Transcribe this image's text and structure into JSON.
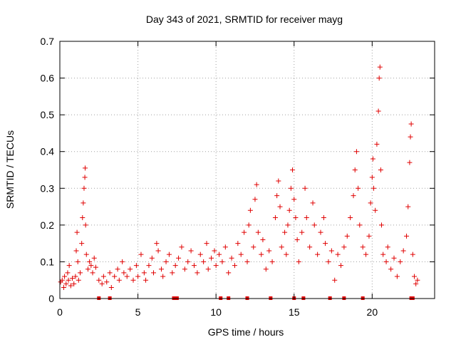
{
  "chart_data": {
    "type": "scatter",
    "title": "Day 343 of 2021, SRMTID for receiver mayg",
    "xlabel": "GPS time / hours",
    "ylabel": "SRMTID / TECUs",
    "xlim": [
      0,
      24
    ],
    "ylim": [
      0,
      0.7
    ],
    "xticks": [
      0,
      5,
      10,
      15,
      20
    ],
    "xtick_labels": [
      "0",
      "5",
      "10",
      "15",
      "20"
    ],
    "yticks": [
      0,
      0.1,
      0.2,
      0.3,
      0.4,
      0.5,
      0.6,
      0.7
    ],
    "ytick_labels": [
      "0",
      "0.1",
      "0.2",
      "0.3",
      "0.4",
      "0.5",
      "0.6",
      "0.7"
    ],
    "grid": true,
    "marker": "plus",
    "color": "#e00000",
    "series": [
      {
        "name": "SRMTID",
        "points": [
          [
            0.05,
            0.045
          ],
          [
            0.15,
            0.05
          ],
          [
            0.25,
            0.03
          ],
          [
            0.3,
            0.06
          ],
          [
            0.4,
            0.04
          ],
          [
            0.5,
            0.07
          ],
          [
            0.55,
            0.05
          ],
          [
            0.6,
            0.09
          ],
          [
            0.7,
            0.035
          ],
          [
            0.8,
            0.055
          ],
          [
            0.9,
            0.04
          ],
          [
            1.0,
            0.06
          ],
          [
            1.05,
            0.13
          ],
          [
            1.1,
            0.18
          ],
          [
            1.15,
            0.1
          ],
          [
            1.2,
            0.05
          ],
          [
            1.3,
            0.07
          ],
          [
            1.4,
            0.15
          ],
          [
            1.45,
            0.22
          ],
          [
            1.5,
            0.26
          ],
          [
            1.55,
            0.3
          ],
          [
            1.6,
            0.33
          ],
          [
            1.62,
            0.355
          ],
          [
            1.65,
            0.2
          ],
          [
            1.7,
            0.12
          ],
          [
            1.8,
            0.08
          ],
          [
            1.9,
            0.1
          ],
          [
            2.0,
            0.09
          ],
          [
            2.1,
            0.07
          ],
          [
            2.2,
            0.11
          ],
          [
            2.3,
            0.085
          ],
          [
            2.5,
            0.05
          ],
          [
            2.7,
            0.04
          ],
          [
            2.8,
            0.06
          ],
          [
            3.0,
            0.045
          ],
          [
            3.2,
            0.07
          ],
          [
            3.3,
            0.03
          ],
          [
            3.5,
            0.06
          ],
          [
            3.7,
            0.08
          ],
          [
            3.8,
            0.05
          ],
          [
            4.0,
            0.1
          ],
          [
            4.1,
            0.07
          ],
          [
            4.3,
            0.06
          ],
          [
            4.5,
            0.08
          ],
          [
            4.7,
            0.05
          ],
          [
            4.9,
            0.09
          ],
          [
            5.0,
            0.06
          ],
          [
            5.2,
            0.12
          ],
          [
            5.4,
            0.07
          ],
          [
            5.5,
            0.05
          ],
          [
            5.7,
            0.09
          ],
          [
            5.9,
            0.11
          ],
          [
            6.0,
            0.07
          ],
          [
            6.2,
            0.15
          ],
          [
            6.3,
            0.13
          ],
          [
            6.5,
            0.08
          ],
          [
            6.6,
            0.06
          ],
          [
            6.8,
            0.1
          ],
          [
            7.0,
            0.12
          ],
          [
            7.2,
            0.07
          ],
          [
            7.4,
            0.09
          ],
          [
            7.6,
            0.11
          ],
          [
            7.8,
            0.14
          ],
          [
            8.0,
            0.08
          ],
          [
            8.2,
            0.1
          ],
          [
            8.4,
            0.13
          ],
          [
            8.6,
            0.09
          ],
          [
            8.8,
            0.07
          ],
          [
            9.0,
            0.12
          ],
          [
            9.2,
            0.1
          ],
          [
            9.4,
            0.15
          ],
          [
            9.5,
            0.08
          ],
          [
            9.7,
            0.11
          ],
          [
            9.9,
            0.13
          ],
          [
            10.0,
            0.09
          ],
          [
            10.2,
            0.12
          ],
          [
            10.4,
            0.1
          ],
          [
            10.6,
            0.14
          ],
          [
            10.8,
            0.07
          ],
          [
            11.0,
            0.11
          ],
          [
            11.2,
            0.09
          ],
          [
            11.4,
            0.15
          ],
          [
            11.6,
            0.12
          ],
          [
            11.8,
            0.18
          ],
          [
            12.0,
            0.1
          ],
          [
            12.1,
            0.2
          ],
          [
            12.2,
            0.24
          ],
          [
            12.4,
            0.14
          ],
          [
            12.5,
            0.27
          ],
          [
            12.6,
            0.31
          ],
          [
            12.7,
            0.18
          ],
          [
            12.9,
            0.12
          ],
          [
            13.0,
            0.16
          ],
          [
            13.2,
            0.08
          ],
          [
            13.4,
            0.13
          ],
          [
            13.6,
            0.1
          ],
          [
            13.8,
            0.22
          ],
          [
            13.9,
            0.28
          ],
          [
            14.0,
            0.32
          ],
          [
            14.1,
            0.25
          ],
          [
            14.2,
            0.14
          ],
          [
            14.4,
            0.18
          ],
          [
            14.5,
            0.12
          ],
          [
            14.6,
            0.2
          ],
          [
            14.7,
            0.24
          ],
          [
            14.8,
            0.3
          ],
          [
            14.9,
            0.35
          ],
          [
            15.0,
            0.27
          ],
          [
            15.1,
            0.22
          ],
          [
            15.2,
            0.16
          ],
          [
            15.3,
            0.1
          ],
          [
            15.5,
            0.18
          ],
          [
            15.7,
            0.3
          ],
          [
            15.8,
            0.22
          ],
          [
            16.0,
            0.14
          ],
          [
            16.2,
            0.26
          ],
          [
            16.3,
            0.2
          ],
          [
            16.5,
            0.12
          ],
          [
            16.7,
            0.18
          ],
          [
            16.9,
            0.22
          ],
          [
            17.0,
            0.15
          ],
          [
            17.2,
            0.1
          ],
          [
            17.4,
            0.13
          ],
          [
            17.6,
            0.05
          ],
          [
            17.8,
            0.12
          ],
          [
            18.0,
            0.09
          ],
          [
            18.2,
            0.14
          ],
          [
            18.4,
            0.17
          ],
          [
            18.6,
            0.22
          ],
          [
            18.8,
            0.28
          ],
          [
            18.9,
            0.35
          ],
          [
            19.0,
            0.4
          ],
          [
            19.1,
            0.3
          ],
          [
            19.2,
            0.2
          ],
          [
            19.4,
            0.14
          ],
          [
            19.6,
            0.12
          ],
          [
            19.8,
            0.17
          ],
          [
            19.9,
            0.26
          ],
          [
            20.0,
            0.33
          ],
          [
            20.05,
            0.38
          ],
          [
            20.1,
            0.3
          ],
          [
            20.2,
            0.24
          ],
          [
            20.3,
            0.42
          ],
          [
            20.4,
            0.51
          ],
          [
            20.45,
            0.6
          ],
          [
            20.5,
            0.63
          ],
          [
            20.55,
            0.35
          ],
          [
            20.6,
            0.2
          ],
          [
            20.7,
            0.12
          ],
          [
            20.9,
            0.1
          ],
          [
            21.0,
            0.14
          ],
          [
            21.2,
            0.08
          ],
          [
            21.4,
            0.11
          ],
          [
            21.6,
            0.06
          ],
          [
            21.8,
            0.1
          ],
          [
            22.0,
            0.13
          ],
          [
            22.2,
            0.17
          ],
          [
            22.3,
            0.25
          ],
          [
            22.4,
            0.37
          ],
          [
            22.45,
            0.44
          ],
          [
            22.5,
            0.475
          ],
          [
            22.6,
            0.12
          ],
          [
            22.7,
            0.06
          ],
          [
            22.8,
            0.04
          ],
          [
            22.9,
            0.05
          ]
        ]
      }
    ],
    "zero_points_x": [
      2.5,
      3.2,
      7.3,
      7.5,
      10.3,
      10.8,
      12.0,
      13.5,
      15.0,
      15.6,
      17.3,
      18.2,
      19.4,
      22.5,
      22.6
    ]
  }
}
